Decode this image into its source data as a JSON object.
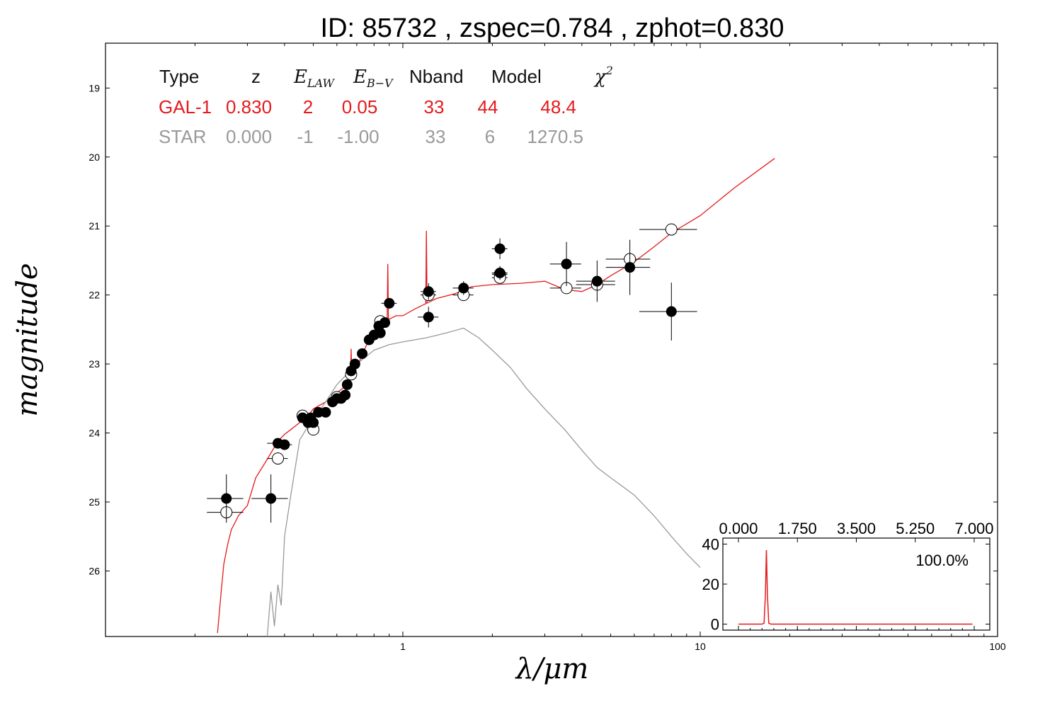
{
  "chart_data": {
    "type": "scatter",
    "title": "ID:  85732 , zspec=0.784 , zphot=0.830",
    "xlabel": "λ/μm",
    "ylabel": "magnitude",
    "x_scale": "log",
    "xlim": [
      0.1,
      100
    ],
    "ylim": [
      26.95,
      18.35
    ],
    "y_inverted": true,
    "x_ticks": [
      "1",
      "10",
      "100"
    ],
    "y_ticks": [
      "19",
      "20",
      "21",
      "22",
      "23",
      "24",
      "25",
      "26"
    ],
    "table": {
      "headers": [
        "Type",
        "z",
        "E_LAW",
        "E_B−V",
        "Nband",
        "Model",
        "χ²"
      ],
      "rows": [
        {
          "color": "#e41a1c",
          "cells": [
            "GAL-1",
            "0.830",
            "2",
            "0.05",
            "33",
            "44",
            "48.4"
          ]
        },
        {
          "color": "#999999",
          "cells": [
            "STAR",
            "0.000",
            "-1",
            "-1.00",
            "33",
            "6",
            "1270.5"
          ]
        }
      ]
    },
    "series": [
      {
        "name": "GAL-1",
        "kind": "line",
        "color": "#e41a1c",
        "x": [
          0.238,
          0.245,
          0.25,
          0.258,
          0.265,
          0.28,
          0.3,
          0.32,
          0.35,
          0.38,
          0.4,
          0.42,
          0.45,
          0.48,
          0.5,
          0.55,
          0.6,
          0.65,
          0.7,
          0.75,
          0.8,
          0.85,
          0.9,
          0.95,
          1.0,
          1.1,
          1.2,
          1.3,
          1.5,
          1.7,
          2.0,
          2.5,
          3.0,
          3.5,
          4.0,
          4.5,
          5.0,
          6.0,
          7.0,
          8.0,
          10.0,
          13.0,
          17.8
        ],
        "y": [
          26.9,
          26.3,
          25.9,
          25.6,
          25.4,
          25.2,
          25.05,
          24.65,
          24.38,
          24.12,
          24.02,
          23.95,
          23.85,
          23.75,
          23.65,
          23.55,
          23.42,
          23.3,
          23.05,
          22.75,
          22.55,
          22.45,
          22.35,
          22.3,
          22.3,
          22.2,
          22.12,
          22.05,
          21.98,
          21.88,
          21.85,
          21.83,
          21.8,
          21.92,
          21.95,
          21.85,
          21.72,
          21.52,
          21.3,
          21.1,
          20.85,
          20.45,
          20.02
        ]
      },
      {
        "name": "STAR",
        "kind": "line",
        "color": "#999999",
        "x": [
          0.35,
          0.36,
          0.37,
          0.38,
          0.39,
          0.4,
          0.42,
          0.45,
          0.48,
          0.5,
          0.55,
          0.6,
          0.7,
          0.8,
          0.9,
          1.0,
          1.2,
          1.4,
          1.6,
          1.8,
          2.0,
          2.3,
          2.6,
          3.0,
          3.5,
          4.0,
          4.5,
          5.0,
          6.0,
          7.0,
          8.0,
          9.0,
          10.0
        ],
        "y": [
          26.95,
          26.3,
          26.8,
          26.2,
          26.5,
          25.5,
          24.9,
          24.1,
          23.9,
          23.8,
          23.55,
          23.3,
          23.0,
          22.8,
          22.72,
          22.68,
          22.62,
          22.55,
          22.48,
          22.62,
          22.8,
          23.05,
          23.35,
          23.65,
          23.95,
          24.25,
          24.5,
          24.65,
          24.9,
          25.2,
          25.5,
          25.75,
          25.95
        ]
      },
      {
        "name": "observed",
        "kind": "points-filled",
        "color": "#000000",
        "x": [
          0.36,
          0.46,
          0.48,
          0.49,
          0.5,
          0.52,
          0.55,
          0.58,
          0.6,
          0.62,
          0.64,
          0.65,
          0.67,
          0.69,
          0.73,
          0.77,
          0.8,
          0.83,
          0.84,
          0.87,
          0.9,
          1.22,
          1.22,
          1.6,
          2.12,
          2.12,
          3.55,
          4.5,
          5.8,
          8.0,
          0.255,
          0.38,
          0.4
        ],
        "y": [
          24.95,
          23.78,
          23.85,
          23.78,
          23.85,
          23.7,
          23.7,
          23.55,
          23.5,
          23.5,
          23.45,
          23.3,
          23.1,
          23.0,
          22.85,
          22.65,
          22.58,
          22.45,
          22.55,
          22.4,
          22.12,
          21.95,
          22.32,
          21.9,
          21.33,
          21.68,
          21.55,
          21.8,
          21.6,
          22.24,
          24.95,
          24.15,
          24.17
        ],
        "yerr": [
          0.35,
          0.05,
          0.05,
          0.05,
          0.05,
          0.05,
          0.05,
          0.05,
          0.05,
          0.05,
          0.05,
          0.05,
          0.05,
          0.05,
          0.05,
          0.05,
          0.05,
          0.05,
          0.05,
          0.05,
          0.05,
          0.12,
          0.15,
          0.1,
          0.15,
          0.1,
          0.32,
          0.3,
          0.4,
          0.42,
          0.35,
          0.05,
          0.05
        ],
        "xerr_frac": [
          0.14,
          0.03,
          0.03,
          0.03,
          0.03,
          0.03,
          0.03,
          0.03,
          0.03,
          0.03,
          0.03,
          0.03,
          0.03,
          0.03,
          0.03,
          0.03,
          0.03,
          0.03,
          0.03,
          0.03,
          0.06,
          0.06,
          0.08,
          0.08,
          0.06,
          0.06,
          0.12,
          0.15,
          0.17,
          0.22,
          0.14,
          0.08,
          0.06
        ]
      },
      {
        "name": "model",
        "kind": "points-open",
        "color": "#000000",
        "x": [
          0.255,
          0.38,
          0.46,
          0.5,
          0.6,
          0.67,
          0.84,
          1.22,
          1.6,
          2.12,
          2.12,
          3.55,
          4.5,
          5.8,
          8.0
        ],
        "y": [
          25.15,
          24.37,
          23.75,
          23.95,
          23.48,
          23.15,
          22.38,
          22.0,
          22.0,
          21.7,
          21.75,
          21.9,
          21.85,
          21.48,
          21.05
        ],
        "xerr_frac": [
          0.14,
          0.08,
          0.03,
          0.03,
          0.03,
          0.03,
          0.03,
          0.06,
          0.08,
          0.06,
          0.06,
          0.12,
          0.15,
          0.17,
          0.22
        ]
      }
    ],
    "emission_lines": [
      {
        "x": 0.67,
        "y_top": 22.78
      },
      {
        "x": 0.89,
        "y_top": 21.55
      },
      {
        "x": 1.2,
        "y_top": 21.07
      }
    ],
    "inset": {
      "x_ticks": [
        "0.000",
        "1.750",
        "3.500",
        "5.250",
        "7.000"
      ],
      "y_ticks": [
        "0",
        "20",
        "40"
      ],
      "xlim": [
        0,
        7
      ],
      "ylim": [
        -3,
        43
      ],
      "annotation": "100.0%",
      "series": {
        "color": "#e41a1c",
        "x": [
          0.0,
          0.7,
          0.76,
          0.8,
          0.83,
          0.86,
          0.9,
          0.96,
          6.95
        ],
        "y": [
          0,
          0,
          0.5,
          15,
          37,
          15,
          0.5,
          0,
          0
        ]
      }
    }
  }
}
